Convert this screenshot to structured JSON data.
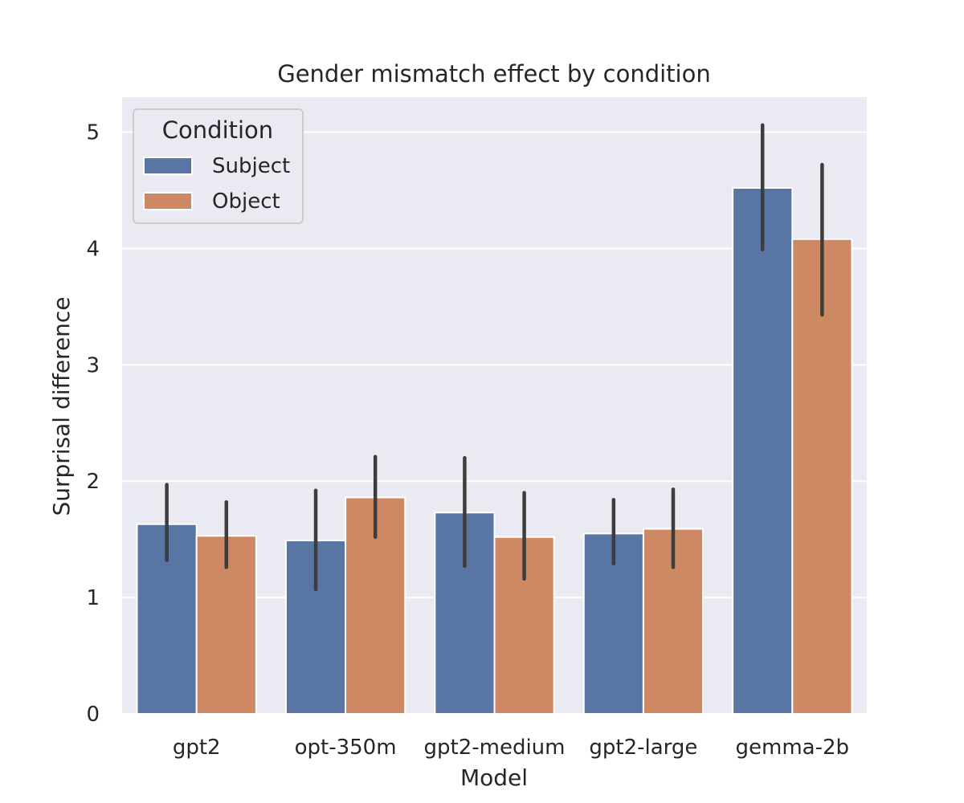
{
  "chart_data": {
    "type": "bar",
    "title": "Gender mismatch effect by condition",
    "xlabel": "Model",
    "ylabel": "Surprisal difference",
    "categories": [
      "gpt2",
      "opt-350m",
      "gpt2-medium",
      "gpt2-large",
      "gemma-2b"
    ],
    "ylim": [
      0,
      5.3
    ],
    "yticks": [
      0,
      1,
      2,
      3,
      4,
      5
    ],
    "grid": true,
    "legend": {
      "title": "Condition",
      "position": "upper-left"
    },
    "series": [
      {
        "name": "Subject",
        "color": "#5875a4",
        "values": [
          1.63,
          1.49,
          1.73,
          1.55,
          4.52
        ],
        "ci_low": [
          1.32,
          1.07,
          1.27,
          1.29,
          3.99
        ],
        "ci_high": [
          1.97,
          1.92,
          2.2,
          1.84,
          5.06
        ]
      },
      {
        "name": "Object",
        "color": "#cc8963",
        "values": [
          1.53,
          1.86,
          1.52,
          1.59,
          4.08
        ],
        "ci_low": [
          1.26,
          1.52,
          1.16,
          1.26,
          3.43
        ],
        "ci_high": [
          1.82,
          2.21,
          1.9,
          1.93,
          4.72
        ]
      }
    ],
    "colors": {
      "plot_background": "#eaeaf2",
      "grid": "#ffffff",
      "error_bar": "#3d3d3d",
      "text": "#262626"
    }
  }
}
